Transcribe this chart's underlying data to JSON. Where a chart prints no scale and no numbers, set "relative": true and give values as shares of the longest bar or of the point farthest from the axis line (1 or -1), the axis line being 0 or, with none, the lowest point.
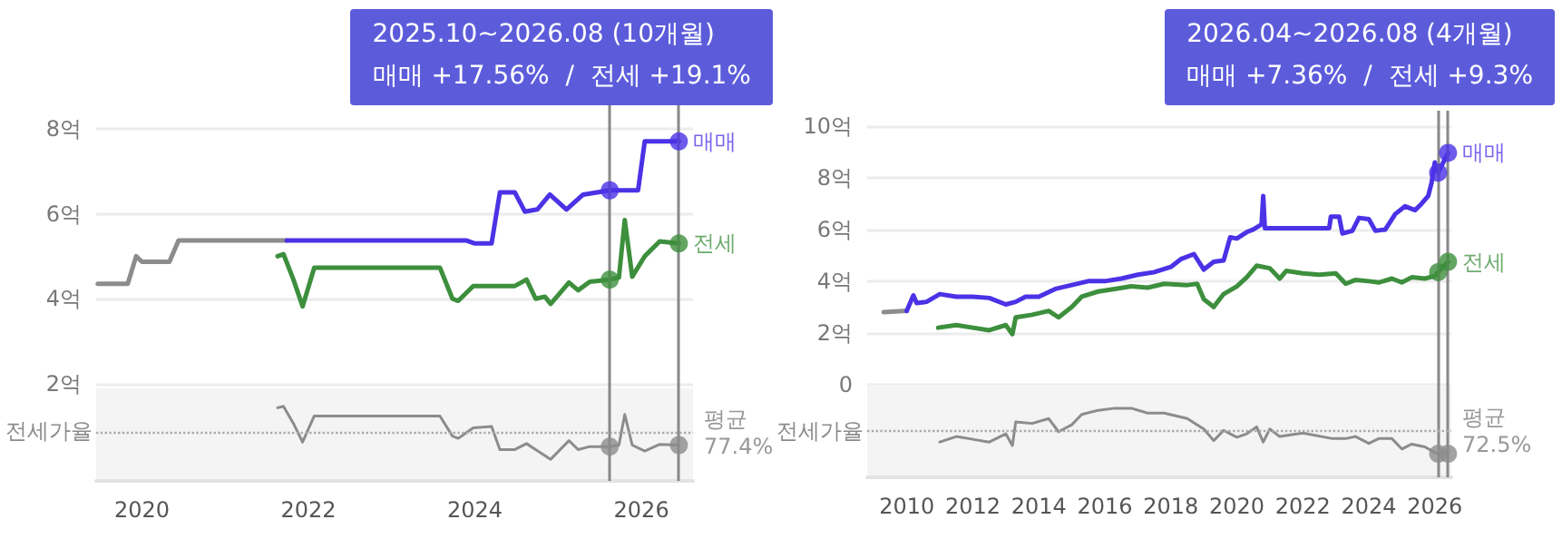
{
  "chart_data": [
    {
      "type": "line",
      "annotations": [
        "2025.10~2026.08 (10개월)",
        "매매 +17.56%  /  전세 +19.1%"
      ],
      "xlim": [
        2019.45,
        2026.62
      ],
      "xticks": [
        2020,
        2022,
        2024,
        2026
      ],
      "tick_labels": "y",
      "ylim": [
        1.85,
        8.55
      ],
      "yticks": [
        {
          "value": 2,
          "label": "2억"
        },
        {
          "value": 4,
          "label": "4억"
        },
        {
          "value": 6,
          "label": "6억"
        },
        {
          "value": 8,
          "label": "8억"
        }
      ],
      "grid": "y",
      "legend": false,
      "ref_lines": [
        {
          "axis": "x",
          "value": 2025.62,
          "color": "#888888"
        },
        {
          "axis": "x",
          "value": 2026.45,
          "color": "#888888"
        }
      ],
      "series": [
        {
          "color": "#8c8c8c",
          "marker": "none",
          "x": [
            2019.47,
            2019.83,
            2019.93,
            2020.0,
            2020.33,
            2020.44,
            2021.74
          ],
          "values": [
            4.35,
            4.35,
            5.0,
            4.87,
            4.87,
            5.37,
            5.37
          ]
        },
        {
          "name": "매매",
          "color": "#4b32e6",
          "marker": "none",
          "x": [
            2021.74,
            2023.9,
            2024.0,
            2024.2,
            2024.3,
            2024.48,
            2024.6,
            2024.75,
            2024.9,
            2025.1,
            2025.3,
            2025.62,
            2025.96,
            2026.04,
            2026.45
          ],
          "values": [
            5.37,
            5.37,
            5.3,
            5.3,
            6.5,
            6.5,
            6.05,
            6.1,
            6.45,
            6.1,
            6.45,
            6.55,
            6.55,
            7.7,
            7.7
          ]
        },
        {
          "name": "전세",
          "color": "#3d8f3d",
          "marker": "none",
          "x": [
            2021.63,
            2021.7,
            2021.82,
            2021.93,
            2022.07,
            2023.58,
            2023.73,
            2023.8,
            2023.98,
            2024.48,
            2024.62,
            2024.73,
            2024.84,
            2024.91,
            2025.13,
            2025.24,
            2025.38,
            2025.62,
            2025.73,
            2025.8,
            2025.89,
            2026.04,
            2026.22,
            2026.45
          ],
          "values": [
            5.0,
            5.05,
            4.45,
            3.82,
            4.73,
            4.73,
            4.0,
            3.95,
            4.3,
            4.3,
            4.45,
            4.0,
            4.05,
            3.88,
            4.38,
            4.2,
            4.4,
            4.45,
            4.5,
            5.85,
            4.52,
            5.0,
            5.35,
            5.3
          ]
        },
        {
          "type": "scatter",
          "marker": "circle",
          "color": "#4b32e6",
          "x": [
            2025.62,
            2026.45
          ],
          "values": [
            6.55,
            7.7
          ]
        },
        {
          "type": "scatter",
          "marker": "circle",
          "color": "#3d8f3d",
          "x": [
            2025.62,
            2026.45
          ],
          "values": [
            4.45,
            5.3
          ]
        }
      ]
    },
    {
      "type": "line",
      "relative": true,
      "tick_labels": "x",
      "xlim": [
        2019.45,
        2026.62
      ],
      "xticks": [
        2020,
        2022,
        2024,
        2026
      ],
      "legend": false,
      "ref_lines": [
        {
          "axis": "x",
          "value": 2025.62,
          "color": "#888888"
        },
        {
          "axis": "x",
          "value": 2026.45,
          "color": "#888888"
        },
        {
          "axis": "y",
          "value": 0.65,
          "label": "평균 77.4%",
          "color": "#aaaaaa",
          "line_style": "dotted"
        }
      ],
      "series": [
        {
          "name": "전세가율",
          "color": "#8c8c8c",
          "marker": "none",
          "x": [
            2021.63,
            2021.7,
            2021.82,
            2021.93,
            2022.07,
            2023.58,
            2023.73,
            2023.8,
            2023.98,
            2024.2,
            2024.3,
            2024.48,
            2024.62,
            2024.73,
            2024.91,
            2025.13,
            2025.24,
            2025.38,
            2025.62,
            2025.73,
            2025.8,
            2025.89,
            2026.04,
            2026.22,
            2026.45
          ],
          "values": [
            0.98,
            1,
            0.77,
            0.52,
            0.87,
            0.87,
            0.6,
            0.57,
            0.71,
            0.73,
            0.42,
            0.42,
            0.5,
            0.42,
            0.29,
            0.54,
            0.42,
            0.46,
            0.46,
            0.48,
            0.89,
            0.48,
            0.4,
            0.49,
            0.48
          ]
        },
        {
          "type": "scatter",
          "marker": "circle",
          "color": "#8c8c8c",
          "x": [
            2025.62,
            2026.45
          ],
          "values": [
            0.46,
            0.48
          ]
        }
      ]
    },
    {
      "type": "line",
      "annotations": [
        "2026.04~2026.08 (4개월)",
        "매매 +7.36%  /  전세 +9.3%"
      ],
      "xlim": [
        2008.8,
        2026.5
      ],
      "xticks": [
        2010,
        2012,
        2014,
        2016,
        2018,
        2020,
        2022,
        2024,
        2026
      ],
      "tick_labels": "y",
      "ylim": [
        -0.15,
        10.6
      ],
      "yticks": [
        0,
        {
          "value": 2,
          "label": "2억"
        },
        {
          "value": 4,
          "label": "4억"
        },
        {
          "value": 6,
          "label": "6억"
        },
        {
          "value": 8,
          "label": "8억"
        },
        {
          "value": 10,
          "label": "10억"
        }
      ],
      "grid": "y",
      "legend": false,
      "ref_lines": [
        {
          "axis": "x",
          "value": 2026.1,
          "color": "#888888"
        },
        {
          "axis": "x",
          "value": 2026.4,
          "color": "#888888"
        }
      ],
      "series": [
        {
          "color": "#8c8c8c",
          "marker": "none",
          "x": [
            2009.3,
            2010.0
          ],
          "values": [
            2.8,
            2.85
          ]
        },
        {
          "name": "매매",
          "color": "#4b32e6",
          "marker": "none",
          "x": [
            2010.0,
            2010.2,
            2010.3,
            2010.6,
            2011,
            2011.5,
            2012,
            2012.5,
            2013,
            2013.3,
            2013.6,
            2014,
            2014.5,
            2015,
            2015.5,
            2016,
            2016.5,
            2017,
            2017.5,
            2018,
            2018.3,
            2018.7,
            2019,
            2019.3,
            2019.6,
            2019.8,
            2020.0,
            2020.3,
            2020.5,
            2020.75,
            2020.8,
            2020.85,
            2021.0,
            2022.8,
            2022.85,
            2023.1,
            2023.2,
            2023.5,
            2023.7,
            2024.0,
            2024.2,
            2024.5,
            2024.8,
            2025.1,
            2025.4,
            2025.6,
            2025.8,
            2025.9,
            2026.0,
            2026.1,
            2026.4
          ],
          "values": [
            2.85,
            3.45,
            3.15,
            3.2,
            3.5,
            3.4,
            3.4,
            3.35,
            3.1,
            3.2,
            3.4,
            3.4,
            3.7,
            3.85,
            4.0,
            4.0,
            4.1,
            4.25,
            4.35,
            4.55,
            4.85,
            5.05,
            4.45,
            4.75,
            4.8,
            5.7,
            5.65,
            5.9,
            6.0,
            6.2,
            7.3,
            6.05,
            6.05,
            6.05,
            6.5,
            6.5,
            5.85,
            5.95,
            6.45,
            6.4,
            5.95,
            6.0,
            6.6,
            6.9,
            6.75,
            7.0,
            7.3,
            7.8,
            8.6,
            8.2,
            8.97
          ]
        },
        {
          "name": "전세",
          "color": "#3d8f3d",
          "marker": "none",
          "x": [
            2010.95,
            2011.5,
            2012,
            2012.5,
            2013,
            2013.2,
            2013.3,
            2013.8,
            2014.3,
            2014.6,
            2015,
            2015.3,
            2015.8,
            2016.3,
            2016.8,
            2017.3,
            2017.8,
            2018.5,
            2018.8,
            2019.0,
            2019.3,
            2019.6,
            2020.0,
            2020.3,
            2020.6,
            2021.0,
            2021.3,
            2021.5,
            2022,
            2022.5,
            2023,
            2023.3,
            2023.6,
            2024,
            2024.3,
            2024.7,
            2025,
            2025.3,
            2025.7,
            2026.0,
            2026.1,
            2026.4
          ],
          "values": [
            2.2,
            2.3,
            2.2,
            2.1,
            2.3,
            1.95,
            2.6,
            2.7,
            2.85,
            2.6,
            3.0,
            3.4,
            3.6,
            3.7,
            3.8,
            3.75,
            3.9,
            3.85,
            3.9,
            3.3,
            3.0,
            3.5,
            3.8,
            4.15,
            4.6,
            4.5,
            4.1,
            4.4,
            4.3,
            4.25,
            4.3,
            3.9,
            4.05,
            4.0,
            3.95,
            4.1,
            3.95,
            4.15,
            4.1,
            4.2,
            4.35,
            4.75
          ]
        },
        {
          "type": "scatter",
          "marker": "circle",
          "color": "#4b32e6",
          "x": [
            2026.1,
            2026.4
          ],
          "values": [
            8.2,
            8.97
          ]
        },
        {
          "type": "scatter",
          "marker": "circle",
          "color": "#3d8f3d",
          "x": [
            2026.1,
            2026.4
          ],
          "values": [
            4.35,
            4.75
          ]
        }
      ]
    },
    {
      "type": "line",
      "relative": true,
      "tick_labels": "x",
      "xlim": [
        2008.8,
        2026.5
      ],
      "xticks": [
        2010,
        2012,
        2014,
        2016,
        2018,
        2020,
        2022,
        2024,
        2026
      ],
      "legend": false,
      "ref_lines": [
        {
          "axis": "x",
          "value": 2026.1,
          "color": "#888888"
        },
        {
          "axis": "x",
          "value": 2026.4,
          "color": "#888888"
        },
        {
          "axis": "y",
          "value": 0.67,
          "label": "평균 72.5%",
          "color": "#aaaaaa",
          "line_style": "dotted"
        }
      ],
      "series": [
        {
          "name": "전세가율",
          "color": "#8c8c8c",
          "marker": "none",
          "x": [
            2011,
            2011.5,
            2012,
            2012.5,
            2013,
            2013.2,
            2013.3,
            2013.8,
            2014.3,
            2014.6,
            2015,
            2015.3,
            2015.8,
            2016.3,
            2016.8,
            2017.3,
            2017.8,
            2018.5,
            2018.8,
            2019.0,
            2019.3,
            2019.6,
            2020.0,
            2020.3,
            2020.6,
            2020.8,
            2021.0,
            2021.3,
            2022,
            2022.9,
            2023.3,
            2023.6,
            2024,
            2024.3,
            2024.7,
            2025,
            2025.3,
            2025.7,
            2026.0,
            2026.1,
            2026.4
          ],
          "values": [
            0.51,
            0.59,
            0.55,
            0.51,
            0.63,
            0.46,
            0.8,
            0.78,
            0.85,
            0.66,
            0.76,
            0.91,
            0.97,
            1,
            1,
            0.93,
            0.93,
            0.85,
            0.76,
            0.7,
            0.53,
            0.68,
            0.58,
            0.63,
            0.73,
            0.51,
            0.7,
            0.59,
            0.64,
            0.56,
            0.56,
            0.59,
            0.49,
            0.56,
            0.56,
            0.41,
            0.48,
            0.44,
            0.36,
            0.34,
            0.34
          ]
        },
        {
          "type": "scatter",
          "marker": "circle",
          "color": "#8c8c8c",
          "x": [
            2026.1,
            2026.4
          ],
          "values": [
            0.34,
            0.34
          ]
        }
      ]
    }
  ]
}
